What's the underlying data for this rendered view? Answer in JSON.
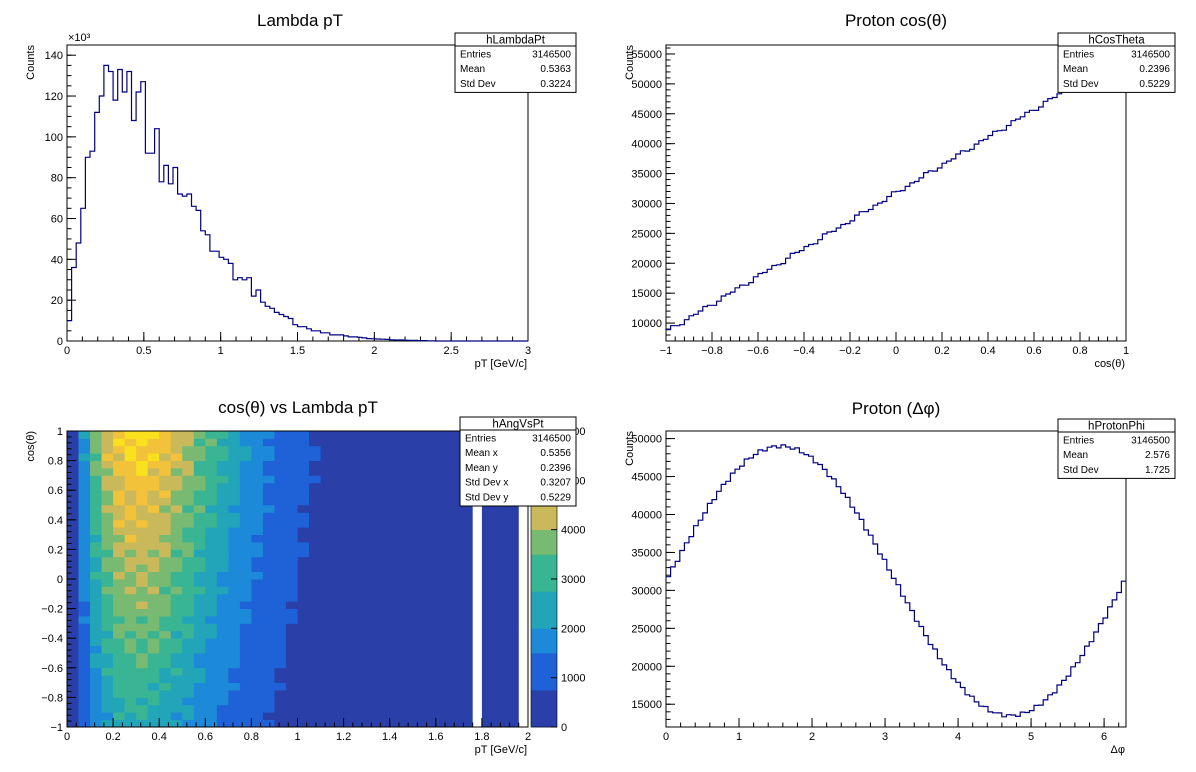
{
  "colors": {
    "hist_line": "#000080",
    "frame": "#000000",
    "background": "#ffffff",
    "palette": [
      "#2a3fa8",
      "#1f62d8",
      "#1d8ad9",
      "#22a5b8",
      "#3ab593",
      "#79ba73",
      "#c9b95a",
      "#f2c23a",
      "#fae11d"
    ]
  },
  "chart_data": [
    {
      "id": "hLambdaPt",
      "type": "histogram",
      "title": "Lambda pT",
      "xlabel": "pT [GeV/c]",
      "ylabel": "Counts",
      "xlim": [
        0,
        3
      ],
      "ylim": [
        0,
        145
      ],
      "y_multiplier_label": "×10³",
      "x_ticks": [
        "0",
        "0.5",
        "1",
        "1.5",
        "2",
        "2.5",
        "3"
      ],
      "y_ticks": [
        "0",
        "20",
        "40",
        "60",
        "80",
        "100",
        "120",
        "140"
      ],
      "bin_width": 0.03,
      "values": [
        10,
        36,
        48,
        65,
        90,
        93,
        112,
        120,
        135,
        132,
        118,
        133,
        122,
        132,
        108,
        122,
        127,
        92,
        92,
        104,
        78,
        86,
        77,
        85,
        72,
        71,
        72,
        66,
        64,
        54,
        52,
        44,
        44,
        41,
        40,
        38,
        30,
        31,
        30,
        31,
        22,
        25,
        19,
        17,
        16,
        14,
        13,
        12,
        11,
        8,
        7,
        7,
        6,
        5,
        5,
        4,
        4,
        3,
        3,
        3,
        2.5,
        2,
        2,
        1.8,
        1.5,
        1.2,
        1.1,
        1,
        0.9,
        0.8,
        0.6,
        0.5,
        0.5,
        0.4,
        0.3,
        0.3,
        0.2,
        0.2,
        0.1,
        0.1,
        0,
        0,
        0,
        0,
        0,
        0,
        0,
        0,
        0,
        0,
        0,
        0,
        0,
        0,
        0,
        0,
        0,
        0,
        0,
        0
      ],
      "stats": {
        "name": "hLambdaPt",
        "rows": [
          [
            "Entries",
            "3146500"
          ],
          [
            "Mean",
            "0.5363"
          ],
          [
            "Std Dev",
            "0.3224"
          ]
        ]
      }
    },
    {
      "id": "hCosTheta",
      "type": "histogram",
      "title": "Proton cos(θ)",
      "xlabel": "cos(θ)",
      "ylabel": "Counts",
      "xlim": [
        -1,
        1
      ],
      "ylim": [
        7000,
        56500
      ],
      "x_ticks": [
        "−1",
        "−0.8",
        "−0.6",
        "−0.4",
        "−0.2",
        "0",
        "0.2",
        "0.4",
        "0.6",
        "0.8",
        "1"
      ],
      "y_ticks": [
        "10000",
        "15000",
        "20000",
        "25000",
        "30000",
        "35000",
        "40000",
        "45000",
        "50000",
        "55000"
      ],
      "bin_width": 0.02,
      "linear_from": 8500,
      "linear_to": 55000,
      "stats": {
        "name": "hCosTheta",
        "rows": [
          [
            "Entries",
            "3146500"
          ],
          [
            "Mean",
            "0.2396"
          ],
          [
            "Std Dev",
            "0.5229"
          ]
        ]
      }
    },
    {
      "id": "hAngVsPt",
      "type": "heatmap",
      "title": "cos(θ) vs Lambda pT",
      "xlabel": "pT [GeV/c]",
      "ylabel": "cos(θ)",
      "xlim": [
        0,
        2
      ],
      "ylim": [
        -1,
        1
      ],
      "zlim": [
        0,
        6000
      ],
      "x_ticks": [
        "0",
        "0.2",
        "0.4",
        "0.6",
        "0.8",
        "1",
        "1.2",
        "1.4",
        "1.6",
        "1.8",
        "2"
      ],
      "y_ticks": [
        "−1",
        "−0.8",
        "−0.6",
        "−0.4",
        "−0.2",
        "0",
        "0.2",
        "0.4",
        "0.6",
        "0.8",
        "1"
      ],
      "z_ticks": [
        "0",
        "1000",
        "2000",
        "3000",
        "4000"
      ],
      "z_ticks_partially_hidden": [
        "5000",
        "6000"
      ],
      "x_bins": 40,
      "y_bins": 40,
      "stats": {
        "name": "hAngVsPt",
        "rows": [
          [
            "Entries",
            "3146500"
          ],
          [
            "Mean x",
            "0.5356"
          ],
          [
            "Mean y",
            "0.2396"
          ],
          [
            "Std Dev x",
            "0.3207"
          ],
          [
            "Std Dev y",
            "0.5229"
          ]
        ]
      }
    },
    {
      "id": "hProtonPhi",
      "type": "histogram",
      "title": "Proton (Δφ)",
      "xlabel": "Δφ",
      "ylabel": "Counts",
      "xlim": [
        0,
        6.3
      ],
      "ylim": [
        12000,
        51000
      ],
      "x_ticks": [
        "0",
        "1",
        "2",
        "3",
        "4",
        "5",
        "6"
      ],
      "y_ticks": [
        "15000",
        "20000",
        "25000",
        "30000",
        "35000",
        "40000",
        "45000",
        "50000"
      ],
      "bin_width": 0.063,
      "model": "31250 + 17750*sin(x)",
      "stats": {
        "name": "hProtonPhi",
        "rows": [
          [
            "Entries",
            "3146500"
          ],
          [
            "Mean",
            "2.576"
          ],
          [
            "Std Dev",
            "1.725"
          ]
        ]
      }
    }
  ]
}
